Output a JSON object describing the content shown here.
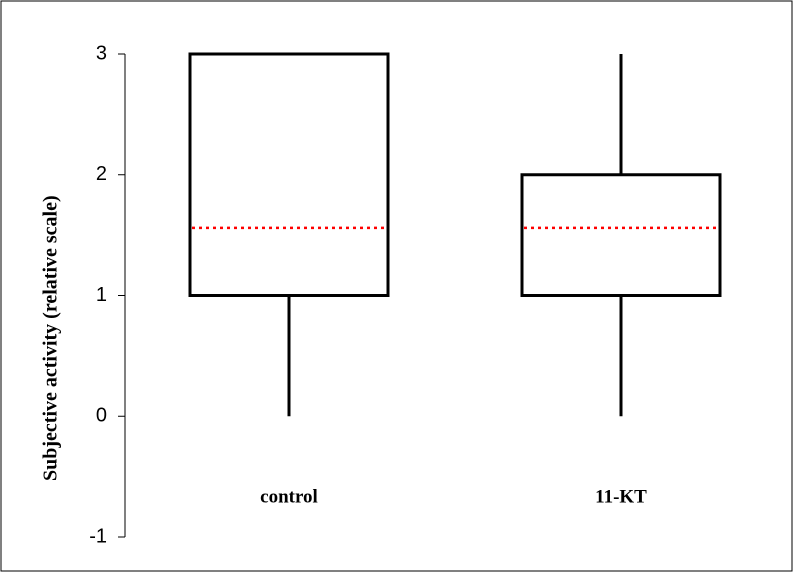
{
  "chart_data": {
    "type": "box",
    "y_label": "Subjective activity (relative scale)",
    "categories": [
      "control",
      "11-KT"
    ],
    "boxes": [
      {
        "whisker_low": 0,
        "q1": 1,
        "q3": 3,
        "whisker_high": 3,
        "mean": 1.56
      },
      {
        "whisker_low": 0,
        "q1": 1,
        "q3": 2,
        "whisker_high": 3,
        "mean": 1.56
      }
    ],
    "box_color": "#000000",
    "mean_color": "#ff0000",
    "ylim": [
      -1,
      3
    ],
    "yticks": [
      -1,
      0,
      1,
      2,
      3
    ]
  }
}
